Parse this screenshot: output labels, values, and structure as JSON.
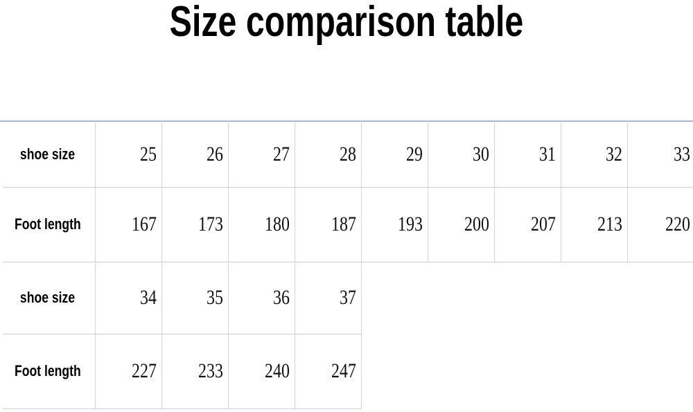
{
  "title": "Size comparison table",
  "table1": {
    "rows": [
      {
        "label": "shoe size",
        "values": [
          "25",
          "26",
          "27",
          "28",
          "29",
          "30",
          "31",
          "32",
          "33"
        ]
      },
      {
        "label": "Foot length",
        "values": [
          "167",
          "173",
          "180",
          "187",
          "193",
          "200",
          "207",
          "213",
          "220"
        ]
      }
    ]
  },
  "table2": {
    "rows": [
      {
        "label": "shoe size",
        "values": [
          "34",
          "35",
          "36",
          "37"
        ]
      },
      {
        "label": "Foot length",
        "values": [
          "227",
          "233",
          "240",
          "247"
        ]
      }
    ]
  }
}
